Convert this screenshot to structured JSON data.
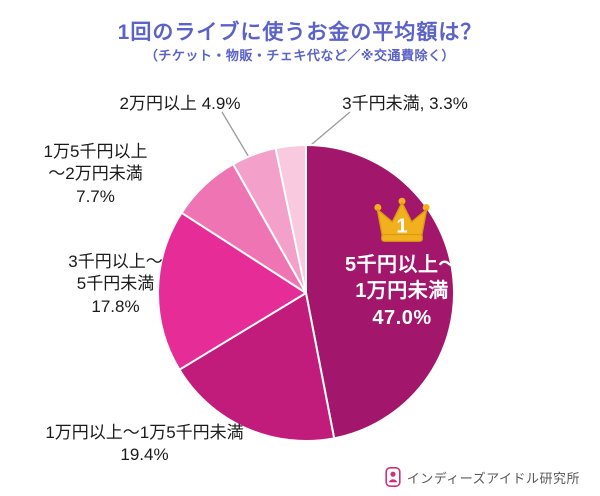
{
  "title": "1回のライブに使うお金の平均額は？",
  "subtitle": "（チケット・物販・チェキ代など／※交通費除く）",
  "rank_badge": "1",
  "brand": {
    "name": "インディーズアイドル研究所"
  },
  "chart_data": {
    "type": "pie",
    "title": "1回のライブに使うお金の平均額は？",
    "subtitle": "（チケット・物販・チェキ代など／※交通費除く）",
    "unit": "%",
    "start_angle_deg": 0,
    "direction": "clockwise",
    "legend_position": "outside-callouts",
    "slices": [
      {
        "label": "5千円以上～1万円未満",
        "value": 47.0,
        "color": "#a2166b",
        "rank": 1
      },
      {
        "label": "1万円以上～1万5千円未満",
        "value": 19.4,
        "color": "#c11b7b"
      },
      {
        "label": "3千円以上～5千円未満",
        "value": 17.8,
        "color": "#e62c96"
      },
      {
        "label": "1万5千円以上～2万円未満",
        "value": 7.7,
        "color": "#ee74b4"
      },
      {
        "label": "2万円以上",
        "value": 4.9,
        "color": "#f3a0ca"
      },
      {
        "label": "3千円未満",
        "value": 3.3,
        "color": "#f8c9df"
      }
    ]
  },
  "callouts": {
    "inside_label": "5千円以上～\n1万円未満\n47.0%",
    "label_19_4": "1万円以上～1万5千円未満\n19.4%",
    "label_17_8": "3千円以上～\n5千円未満\n17.8%",
    "label_7_7": "1万5千円以上\n～2万円未満\n7.7%",
    "label_4_9": "2万円以上 4.9%",
    "label_3_3": "3千円未満, 3.3%"
  }
}
